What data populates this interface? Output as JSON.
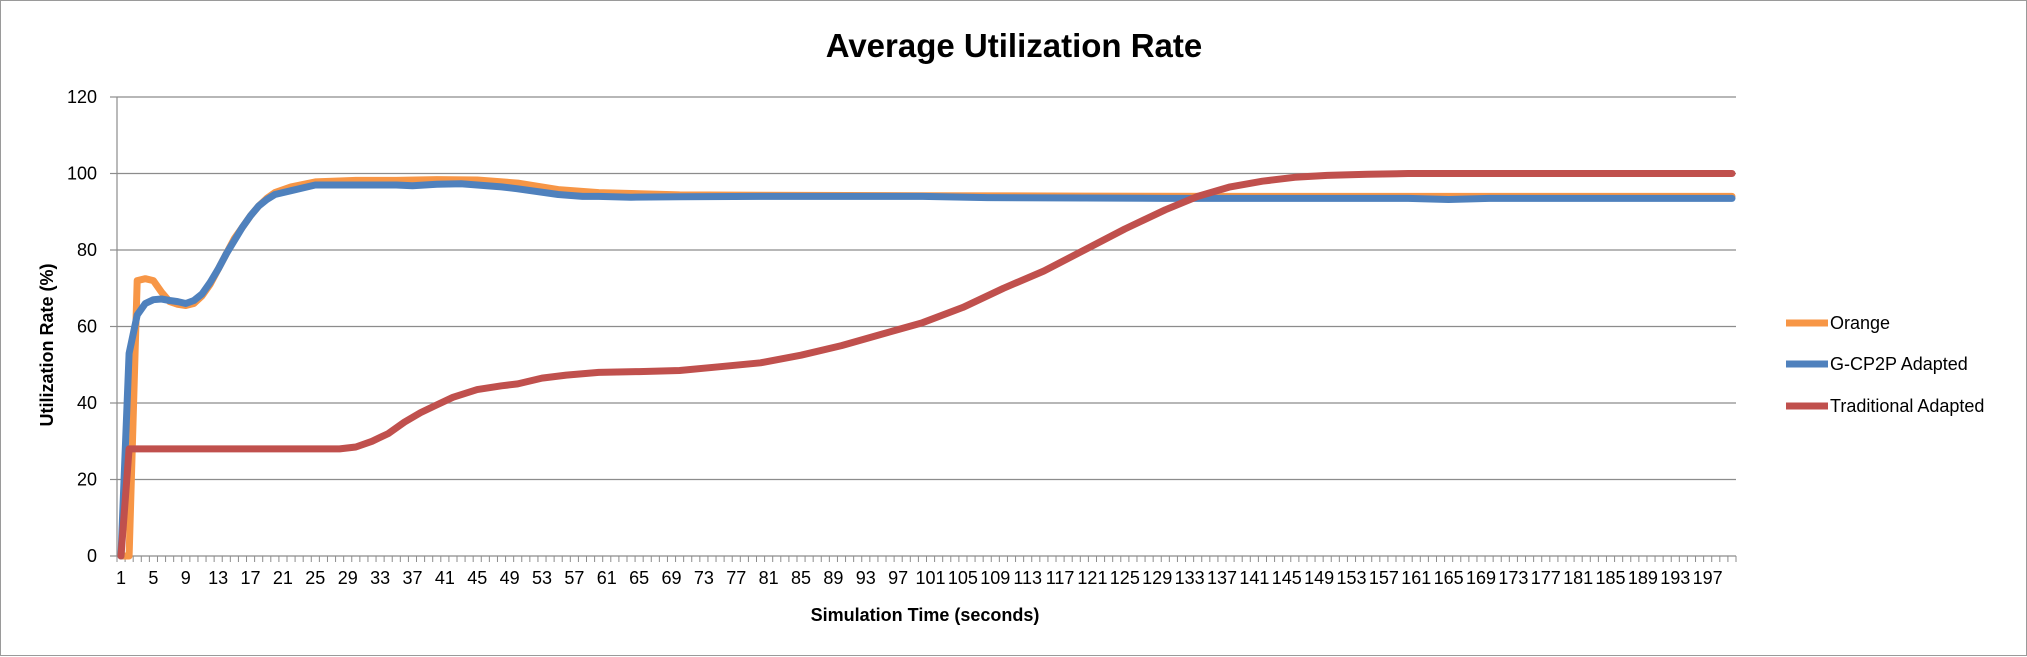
{
  "chart_data": {
    "type": "line",
    "title": "Average Utilization Rate",
    "xlabel": "Simulation Time (seconds)",
    "ylabel": "Utilization Rate (%)",
    "ylim": [
      0,
      120
    ],
    "yticks": [
      0,
      20,
      40,
      60,
      80,
      100,
      120
    ],
    "x_tick_start": 1,
    "x_tick_end": 197,
    "x_tick_step": 4,
    "x_count": 200,
    "grid": true,
    "legend_position": "right",
    "series": [
      {
        "name": "Orange",
        "color": "#F79646",
        "points": [
          [
            1,
            0
          ],
          [
            2,
            0
          ],
          [
            3,
            72
          ],
          [
            4,
            72.5
          ],
          [
            5,
            72
          ],
          [
            6,
            69
          ],
          [
            7,
            66.5
          ],
          [
            8,
            65.8
          ],
          [
            9,
            65.5
          ],
          [
            10,
            66
          ],
          [
            11,
            68
          ],
          [
            12,
            71
          ],
          [
            13,
            75
          ],
          [
            14,
            79
          ],
          [
            15,
            83
          ],
          [
            16,
            86
          ],
          [
            17,
            89
          ],
          [
            18,
            91.5
          ],
          [
            19,
            93.5
          ],
          [
            20,
            95
          ],
          [
            22,
            96.5
          ],
          [
            25,
            97.8
          ],
          [
            30,
            98.2
          ],
          [
            35,
            98.2
          ],
          [
            40,
            98.4
          ],
          [
            45,
            98.3
          ],
          [
            50,
            97.5
          ],
          [
            55,
            95.8
          ],
          [
            60,
            95
          ],
          [
            70,
            94.4
          ],
          [
            80,
            94.3
          ],
          [
            100,
            94.2
          ],
          [
            120,
            94.1
          ],
          [
            140,
            94
          ],
          [
            160,
            94
          ],
          [
            180,
            94
          ],
          [
            200,
            94
          ]
        ]
      },
      {
        "name": "G-CP2P Adapted",
        "color": "#4F81BD",
        "points": [
          [
            1,
            0
          ],
          [
            2,
            53
          ],
          [
            3,
            63
          ],
          [
            4,
            66
          ],
          [
            5,
            67
          ],
          [
            6,
            67.2
          ],
          [
            7,
            66.8
          ],
          [
            8,
            66.5
          ],
          [
            9,
            66
          ],
          [
            10,
            66.8
          ],
          [
            11,
            68.5
          ],
          [
            12,
            71.5
          ],
          [
            13,
            75
          ],
          [
            14,
            79
          ],
          [
            15,
            82.5
          ],
          [
            16,
            86
          ],
          [
            17,
            89
          ],
          [
            18,
            91.5
          ],
          [
            19,
            93.2
          ],
          [
            20,
            94.5
          ],
          [
            22,
            95.5
          ],
          [
            25,
            97
          ],
          [
            30,
            97
          ],
          [
            35,
            97
          ],
          [
            37,
            96.8
          ],
          [
            40,
            97.2
          ],
          [
            43,
            97.3
          ],
          [
            45,
            97
          ],
          [
            48,
            96.5
          ],
          [
            50,
            96
          ],
          [
            55,
            94.5
          ],
          [
            58,
            94
          ],
          [
            60,
            94
          ],
          [
            64,
            93.8
          ],
          [
            70,
            93.9
          ],
          [
            80,
            94
          ],
          [
            100,
            94
          ],
          [
            108,
            93.7
          ],
          [
            120,
            93.6
          ],
          [
            130,
            93.5
          ],
          [
            160,
            93.5
          ],
          [
            165,
            93.2
          ],
          [
            170,
            93.5
          ],
          [
            200,
            93.5
          ]
        ]
      },
      {
        "name": "Traditional Adapted",
        "color": "#C0504D",
        "points": [
          [
            1,
            0
          ],
          [
            2,
            28
          ],
          [
            3,
            28
          ],
          [
            10,
            28
          ],
          [
            20,
            28
          ],
          [
            28,
            28
          ],
          [
            30,
            28.5
          ],
          [
            32,
            30
          ],
          [
            34,
            32
          ],
          [
            36,
            35
          ],
          [
            38,
            37.5
          ],
          [
            40,
            39.5
          ],
          [
            42,
            41.5
          ],
          [
            45,
            43.5
          ],
          [
            48,
            44.5
          ],
          [
            50,
            45
          ],
          [
            53,
            46.5
          ],
          [
            56,
            47.3
          ],
          [
            60,
            48
          ],
          [
            65,
            48.2
          ],
          [
            70,
            48.5
          ],
          [
            75,
            49.5
          ],
          [
            80,
            50.5
          ],
          [
            85,
            52.5
          ],
          [
            90,
            55
          ],
          [
            95,
            58
          ],
          [
            100,
            61
          ],
          [
            105,
            65
          ],
          [
            110,
            70
          ],
          [
            115,
            74.5
          ],
          [
            120,
            80
          ],
          [
            125,
            85.5
          ],
          [
            130,
            90.5
          ],
          [
            134,
            94
          ],
          [
            138,
            96.5
          ],
          [
            142,
            98
          ],
          [
            146,
            99
          ],
          [
            150,
            99.5
          ],
          [
            155,
            99.8
          ],
          [
            160,
            100
          ],
          [
            170,
            100
          ],
          [
            180,
            100
          ],
          [
            190,
            100
          ],
          [
            200,
            100
          ]
        ]
      }
    ]
  }
}
